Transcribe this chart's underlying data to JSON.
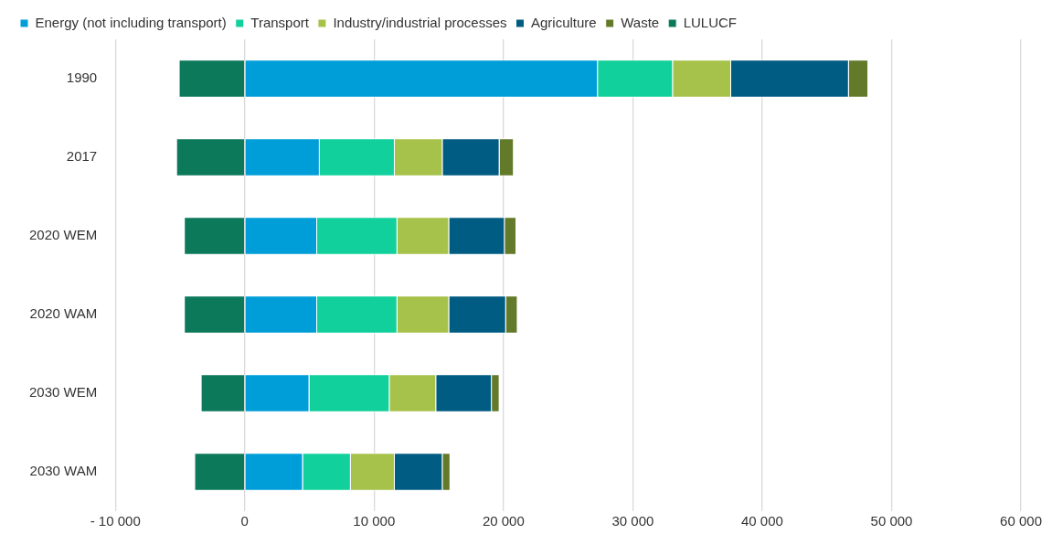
{
  "chart_data": {
    "type": "bar",
    "orientation": "horizontal",
    "stacked": true,
    "categories": [
      "1990",
      "2017",
      "2020 WEM",
      "2020 WAM",
      "2030 WEM",
      "2030 WAM"
    ],
    "series": [
      {
        "name": "Energy (not including transport)",
        "color": "#009ed8",
        "values": [
          27300,
          5800,
          5600,
          5600,
          5000,
          4500
        ]
      },
      {
        "name": "Transport",
        "color": "#11d09b",
        "values": [
          5800,
          5800,
          6200,
          6200,
          6200,
          3700
        ]
      },
      {
        "name": "Industry/industrial processes",
        "color": "#a7c24a",
        "values": [
          4500,
          3700,
          4000,
          4000,
          3600,
          3400
        ]
      },
      {
        "name": "Agriculture",
        "color": "#005c82",
        "values": [
          9100,
          4400,
          4300,
          4400,
          4300,
          3700
        ]
      },
      {
        "name": "Waste",
        "color": "#627a29",
        "values": [
          1500,
          1100,
          900,
          900,
          600,
          600
        ]
      },
      {
        "name": "LULUCF",
        "color": "#0c795b",
        "values": [
          -5100,
          -5300,
          -4700,
          -4700,
          -3400,
          -3900
        ]
      }
    ],
    "xlim": [
      -10000,
      60000
    ],
    "xticks": [
      {
        "value": -10000,
        "label": "- 10 000"
      },
      0,
      {
        "value": 10000,
        "label": "10 000"
      },
      {
        "value": 20000,
        "label": "20 000"
      },
      {
        "value": 30000,
        "label": "30 000"
      },
      {
        "value": 40000,
        "label": "40 000"
      },
      {
        "value": 50000,
        "label": "50 000"
      },
      {
        "value": 60000,
        "label": "60 000"
      }
    ],
    "grid": "x",
    "legend": "top"
  }
}
